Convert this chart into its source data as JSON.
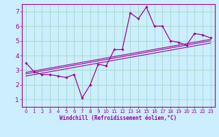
{
  "xlabel": "Windchill (Refroidissement éolien,°C)",
  "background_color": "#cceeff",
  "line_color": "#990099",
  "grid_color": "#aaddcc",
  "x_data": [
    0,
    1,
    2,
    3,
    4,
    5,
    6,
    7,
    8,
    9,
    10,
    11,
    12,
    13,
    14,
    15,
    16,
    17,
    18,
    19,
    20,
    21,
    22,
    23
  ],
  "y_main": [
    3.5,
    2.9,
    2.7,
    2.7,
    2.6,
    2.5,
    2.7,
    1.1,
    2.0,
    3.4,
    3.3,
    4.4,
    4.4,
    6.9,
    6.5,
    7.3,
    6.0,
    6.0,
    5.0,
    4.9,
    4.7,
    5.5,
    5.4,
    5.2
  ],
  "line1_start": 2.85,
  "line1_end": 5.1,
  "line2_start": 2.75,
  "line2_end": 5.0,
  "line3_start": 2.6,
  "line3_end": 4.85,
  "xlim": [
    -0.5,
    23.5
  ],
  "ylim": [
    0.5,
    7.5
  ],
  "yticks": [
    1,
    2,
    3,
    4,
    5,
    6,
    7
  ],
  "xticks": [
    0,
    1,
    2,
    3,
    4,
    5,
    6,
    7,
    8,
    9,
    10,
    11,
    12,
    13,
    14,
    15,
    16,
    17,
    18,
    19,
    20,
    21,
    22,
    23
  ],
  "xlabel_fontsize": 5.5,
  "tick_fontsize_x": 5.0,
  "tick_fontsize_y": 6.5
}
